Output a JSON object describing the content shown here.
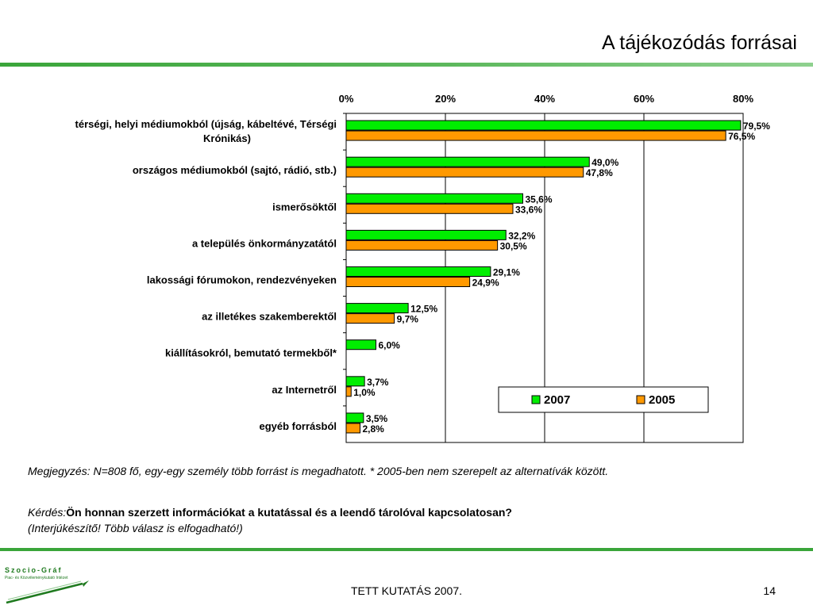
{
  "header": {
    "title": "A tájékozódás forrásai"
  },
  "chart_data": {
    "type": "bar",
    "orientation": "horizontal",
    "categories": [
      "térségi, helyi médiumokból (újság, kábeltévé, Térségi Krónikás)",
      "országos médiumokból (sajtó, rádió, stb.)",
      "ismerősöktől",
      "a település önkormányzatától",
      "lakossági fórumokon, rendezvényeken",
      "az illetékes szakemberektől",
      "kiállításokról, bemutató termekből*",
      "az Internetről",
      "egyéb forrásból"
    ],
    "series": [
      {
        "name": "2007",
        "color": "#00ee00",
        "values": [
          79.5,
          49.0,
          35.6,
          32.2,
          29.1,
          12.5,
          6.0,
          3.7,
          3.5
        ],
        "labels": [
          "79,5%",
          "49,0%",
          "35,6%",
          "32,2%",
          "29,1%",
          "12,5%",
          "6,0%",
          "3,7%",
          "3,5%"
        ]
      },
      {
        "name": "2005",
        "color": "#ff9900",
        "values": [
          76.5,
          47.8,
          33.6,
          30.5,
          24.9,
          9.7,
          null,
          1.0,
          2.8
        ],
        "labels": [
          "76,5%",
          "47,8%",
          "33,6%",
          "30,5%",
          "24,9%",
          "9,7%",
          "",
          "1,0%",
          "2,8%"
        ]
      }
    ],
    "xlim": [
      0,
      80
    ],
    "ticks": [
      0,
      20,
      40,
      60,
      80
    ],
    "tick_labels": [
      "0%",
      "20%",
      "40%",
      "60%",
      "80%"
    ],
    "axis_position": "top",
    "grid": true,
    "legend": "bottom-right"
  },
  "note": "Megjegyzés: N=808 fő, egy-egy személy több forrást is megadhatott.    * 2005-ben nem szerepelt az alternatívák között.",
  "question": {
    "prefix": "Kérdés:",
    "text": "Ön honnan szerzett információkat a kutatással és a leendő tárolóval kapcsolatosan?",
    "hint": "(Interjúkészítő! Több válasz is elfogadható!)"
  },
  "footer": {
    "text": "TETT KUTATÁS 2007.",
    "page": "14"
  },
  "logo": {
    "name": "Szocio-Gráf",
    "sub": "Piac- és Közvéleménykutató Intézet"
  }
}
